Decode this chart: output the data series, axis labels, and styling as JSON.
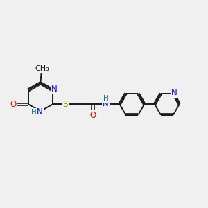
{
  "background_color": "#f0f0f0",
  "bond_color": "#1a1a1a",
  "nitrogen_color": "#0000ff",
  "oxygen_color": "#ff0000",
  "sulfur_color": "#999900",
  "nh_color": "#008080",
  "fig_width": 3.0,
  "fig_height": 3.0,
  "dpi": 100,
  "xlim": [
    0,
    12
  ],
  "ylim": [
    0,
    10
  ],
  "font_size": 8.5
}
